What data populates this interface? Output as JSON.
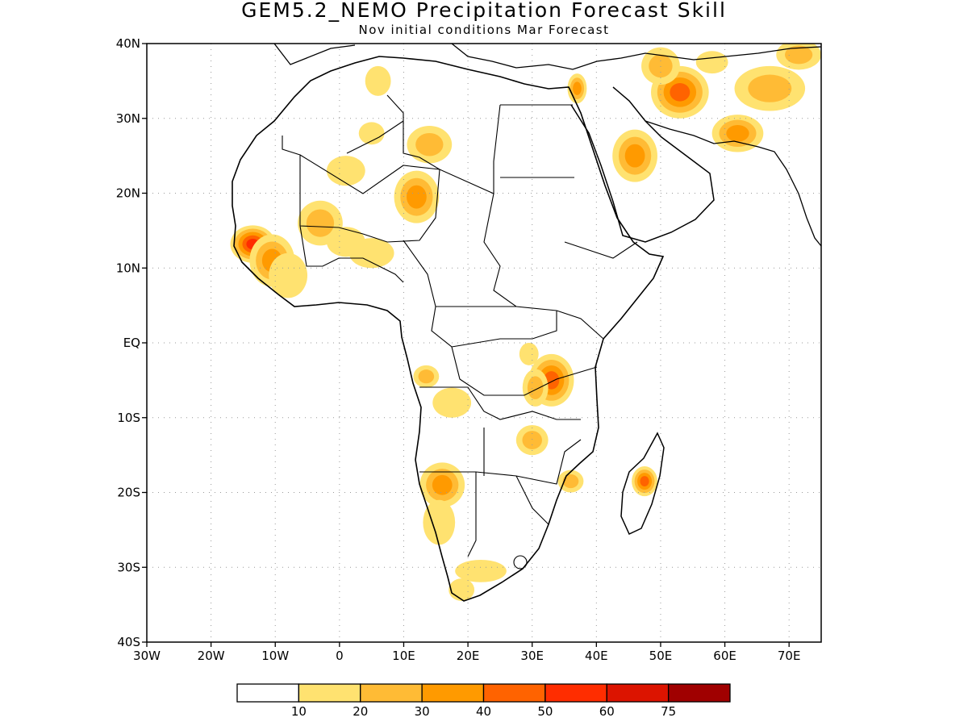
{
  "title": "GEM5.2_NEMO Precipitation Forecast Skill",
  "subtitle": "Nov initial conditions  Mar Forecast",
  "map": {
    "lon_range": [
      -30,
      75
    ],
    "lat_range": [
      -40,
      40
    ],
    "lat_ticks": [
      {
        "value": 40,
        "label": "40N"
      },
      {
        "value": 30,
        "label": "30N"
      },
      {
        "value": 20,
        "label": "20N"
      },
      {
        "value": 10,
        "label": "10N"
      },
      {
        "value": 0,
        "label": "EQ"
      },
      {
        "value": -10,
        "label": "10S"
      },
      {
        "value": -20,
        "label": "20S"
      },
      {
        "value": -30,
        "label": "30S"
      },
      {
        "value": -40,
        "label": "40S"
      }
    ],
    "lon_ticks": [
      {
        "value": -30,
        "label": "30W"
      },
      {
        "value": -20,
        "label": "20W"
      },
      {
        "value": -10,
        "label": "10W"
      },
      {
        "value": 0,
        "label": "0"
      },
      {
        "value": 10,
        "label": "10E"
      },
      {
        "value": 20,
        "label": "20E"
      },
      {
        "value": 30,
        "label": "30E"
      },
      {
        "value": 40,
        "label": "40E"
      },
      {
        "value": 50,
        "label": "50E"
      },
      {
        "value": 60,
        "label": "60E"
      },
      {
        "value": 70,
        "label": "70E"
      }
    ],
    "grid": true
  },
  "colorbar": {
    "bins": [
      {
        "color": "#ffffff"
      },
      {
        "color": "#ffe270"
      },
      {
        "color": "#ffbb35"
      },
      {
        "color": "#ff9a00"
      },
      {
        "color": "#ff6300"
      },
      {
        "color": "#ff2d00"
      },
      {
        "color": "#dc1400"
      },
      {
        "color": "#a00000"
      }
    ],
    "labels": [
      "10",
      "20",
      "30",
      "40",
      "50",
      "60",
      "75"
    ]
  },
  "skill_patches": [
    {
      "lon": -13.5,
      "lat": 13.2,
      "rx": 3.5,
      "ry": 2.5,
      "level": 5
    },
    {
      "lon": -10.5,
      "lat": 11.0,
      "rx": 3.5,
      "ry": 3.5,
      "level": 3
    },
    {
      "lon": -8.0,
      "lat": 9.0,
      "rx": 3.0,
      "ry": 3.0,
      "level": 1
    },
    {
      "lon": -3.0,
      "lat": 16.0,
      "rx": 3.5,
      "ry": 3.0,
      "level": 2
    },
    {
      "lon": 1.0,
      "lat": 13.5,
      "rx": 3.0,
      "ry": 2.0,
      "level": 1
    },
    {
      "lon": 5.0,
      "lat": 12.0,
      "rx": 3.5,
      "ry": 2.0,
      "level": 1
    },
    {
      "lon": 12.0,
      "lat": 19.5,
      "rx": 3.5,
      "ry": 3.5,
      "level": 3
    },
    {
      "lon": 14.0,
      "lat": 26.5,
      "rx": 3.5,
      "ry": 2.5,
      "level": 2
    },
    {
      "lon": 5.0,
      "lat": 28.0,
      "rx": 2.0,
      "ry": 1.5,
      "level": 1
    },
    {
      "lon": 1.0,
      "lat": 23.0,
      "rx": 3.0,
      "ry": 2.0,
      "level": 1
    },
    {
      "lon": 6.0,
      "lat": 35.0,
      "rx": 2.0,
      "ry": 2.0,
      "level": 1
    },
    {
      "lon": 46.0,
      "lat": 25.0,
      "rx": 3.5,
      "ry": 3.5,
      "level": 3
    },
    {
      "lon": 53.0,
      "lat": 33.5,
      "rx": 4.5,
      "ry": 3.5,
      "level": 4
    },
    {
      "lon": 50.0,
      "lat": 37.0,
      "rx": 3.0,
      "ry": 2.5,
      "level": 2
    },
    {
      "lon": 62.0,
      "lat": 28.0,
      "rx": 4.0,
      "ry": 2.5,
      "level": 3
    },
    {
      "lon": 67.0,
      "lat": 34.0,
      "rx": 5.5,
      "ry": 3.0,
      "level": 2
    },
    {
      "lon": 71.5,
      "lat": 38.5,
      "rx": 3.5,
      "ry": 2.0,
      "level": 2
    },
    {
      "lon": 37.0,
      "lat": 34.0,
      "rx": 1.5,
      "ry": 2.0,
      "level": 3
    },
    {
      "lon": 33.0,
      "lat": -5.0,
      "rx": 3.5,
      "ry": 3.5,
      "level": 4
    },
    {
      "lon": 30.5,
      "lat": -6.0,
      "rx": 2.0,
      "ry": 2.5,
      "level": 2
    },
    {
      "lon": 29.5,
      "lat": -1.5,
      "rx": 1.5,
      "ry": 1.5,
      "level": 1
    },
    {
      "lon": 30.0,
      "lat": -13.0,
      "rx": 2.5,
      "ry": 2.0,
      "level": 2
    },
    {
      "lon": 13.5,
      "lat": -4.5,
      "rx": 2.0,
      "ry": 1.5,
      "level": 2
    },
    {
      "lon": 17.5,
      "lat": -8.0,
      "rx": 3.0,
      "ry": 2.0,
      "level": 1
    },
    {
      "lon": 16.0,
      "lat": -19.0,
      "rx": 3.5,
      "ry": 3.0,
      "level": 3
    },
    {
      "lon": 15.5,
      "lat": -24.0,
      "rx": 2.5,
      "ry": 3.0,
      "level": 1
    },
    {
      "lon": 22.0,
      "lat": -30.5,
      "rx": 4.0,
      "ry": 1.5,
      "level": 1
    },
    {
      "lon": 19.0,
      "lat": -33.0,
      "rx": 2.0,
      "ry": 1.5,
      "level": 1
    },
    {
      "lon": 36.0,
      "lat": -18.5,
      "rx": 2.0,
      "ry": 1.5,
      "level": 2
    },
    {
      "lon": 47.5,
      "lat": -18.5,
      "rx": 2.0,
      "ry": 2.0,
      "level": 4
    },
    {
      "lon": 58.0,
      "lat": 37.5,
      "rx": 2.5,
      "ry": 1.5,
      "level": 1
    }
  ]
}
